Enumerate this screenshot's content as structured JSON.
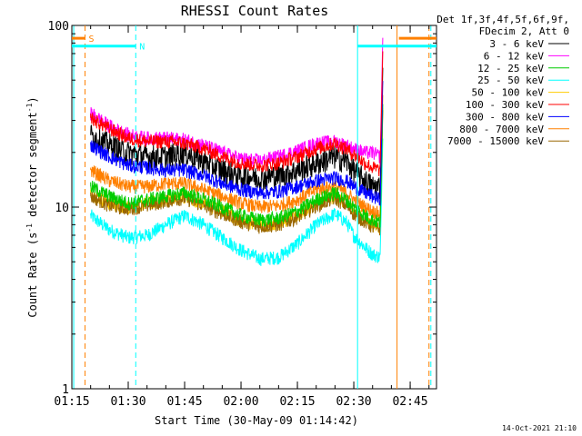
{
  "chart_data": {
    "type": "line",
    "title": "RHESSI Count Rates",
    "xlabel": "Start Time (30-May-09 01:14:42)",
    "ylabel": "Count Rate (s",
    "ylabel_sup": "-1",
    "ylabel_tail": " detector segment",
    "ylabel_sup2": "-1",
    "ylabel_close": ")",
    "yscale": "log",
    "ylim": [
      1,
      100
    ],
    "xlim_minutes": [
      75,
      172
    ],
    "x_ticks": [
      {
        "label": "01:15",
        "minutes": 75
      },
      {
        "label": "01:30",
        "minutes": 90
      },
      {
        "label": "01:45",
        "minutes": 105
      },
      {
        "label": "02:00",
        "minutes": 120
      },
      {
        "label": "02:15",
        "minutes": 135
      },
      {
        "label": "02:30",
        "minutes": 150
      },
      {
        "label": "02:45",
        "minutes": 165
      }
    ],
    "y_ticks": [
      {
        "label": "1",
        "value": 1
      },
      {
        "label": "10",
        "value": 10
      },
      {
        "label": "100",
        "value": 100
      }
    ],
    "legend_header": [
      "Det 1f,3f,4f,5f,6f,9f,",
      "FDecim 2, Att 0"
    ],
    "legend_position": "right",
    "series": [
      {
        "name": "3 - 6 keV",
        "color": "#000000",
        "points": [
          [
            80,
            25
          ],
          [
            85,
            22
          ],
          [
            90,
            20
          ],
          [
            95,
            19
          ],
          [
            100,
            19
          ],
          [
            105,
            20
          ],
          [
            110,
            18
          ],
          [
            115,
            16
          ],
          [
            120,
            15
          ],
          [
            125,
            14.5
          ],
          [
            130,
            15
          ],
          [
            135,
            16
          ],
          [
            140,
            17.5
          ],
          [
            145,
            19
          ],
          [
            148,
            18
          ],
          [
            150,
            16
          ],
          [
            153,
            14
          ],
          [
            155,
            13
          ],
          [
            157,
            13
          ]
        ]
      },
      {
        "name": "6 - 12 keV",
        "color": "#ff00ff",
        "points": [
          [
            80,
            33
          ],
          [
            85,
            28
          ],
          [
            90,
            25
          ],
          [
            95,
            24
          ],
          [
            100,
            24
          ],
          [
            105,
            23.5
          ],
          [
            110,
            22
          ],
          [
            115,
            20
          ],
          [
            120,
            18.5
          ],
          [
            125,
            18
          ],
          [
            130,
            19
          ],
          [
            135,
            20.5
          ],
          [
            140,
            22.5
          ],
          [
            145,
            23
          ],
          [
            148,
            22
          ],
          [
            150,
            21
          ],
          [
            153,
            20
          ],
          [
            155,
            20
          ],
          [
            157,
            19
          ]
        ]
      },
      {
        "name": "12 - 25 keV",
        "color": "#00cc00",
        "points": [
          [
            80,
            13
          ],
          [
            85,
            11.5
          ],
          [
            90,
            10.5
          ],
          [
            95,
            11
          ],
          [
            100,
            11.5
          ],
          [
            105,
            12
          ],
          [
            110,
            11
          ],
          [
            115,
            10
          ],
          [
            120,
            9
          ],
          [
            125,
            8.5
          ],
          [
            130,
            8.7
          ],
          [
            135,
            9.5
          ],
          [
            140,
            11
          ],
          [
            145,
            12
          ],
          [
            148,
            11
          ],
          [
            150,
            10
          ],
          [
            153,
            9
          ],
          [
            155,
            8.5
          ],
          [
            157,
            8.2
          ]
        ]
      },
      {
        "name": "25 - 50 keV",
        "color": "#00ffff",
        "points": [
          [
            80,
            9
          ],
          [
            85,
            7.5
          ],
          [
            90,
            6.8
          ],
          [
            95,
            7
          ],
          [
            100,
            8
          ],
          [
            105,
            9
          ],
          [
            110,
            8
          ],
          [
            115,
            6.8
          ],
          [
            120,
            5.8
          ],
          [
            125,
            5.2
          ],
          [
            130,
            5.3
          ],
          [
            135,
            6.3
          ],
          [
            140,
            8
          ],
          [
            145,
            9.2
          ],
          [
            148,
            8.3
          ],
          [
            150,
            7
          ],
          [
            153,
            6
          ],
          [
            155,
            5.5
          ],
          [
            157,
            5.3
          ]
        ]
      },
      {
        "name": "50 - 100 keV",
        "color": "#ffcc00",
        "points": [
          [
            80,
            12
          ],
          [
            85,
            10.5
          ],
          [
            90,
            10
          ],
          [
            95,
            10.5
          ],
          [
            100,
            11
          ],
          [
            105,
            11.5
          ],
          [
            110,
            10.5
          ],
          [
            115,
            9.5
          ],
          [
            120,
            8.5
          ],
          [
            125,
            8
          ],
          [
            130,
            8.2
          ],
          [
            135,
            9
          ],
          [
            140,
            10.5
          ],
          [
            145,
            11.5
          ],
          [
            148,
            10.5
          ],
          [
            150,
            9.5
          ],
          [
            153,
            8.5
          ],
          [
            155,
            8
          ],
          [
            157,
            7.8
          ]
        ]
      },
      {
        "name": "100 - 300 keV",
        "color": "#ff0000",
        "points": [
          [
            80,
            31
          ],
          [
            85,
            27
          ],
          [
            90,
            24
          ],
          [
            95,
            23
          ],
          [
            100,
            23
          ],
          [
            105,
            22.5
          ],
          [
            110,
            21
          ],
          [
            115,
            19
          ],
          [
            120,
            17.5
          ],
          [
            125,
            17
          ],
          [
            130,
            17.5
          ],
          [
            135,
            19
          ],
          [
            140,
            21
          ],
          [
            145,
            22.5
          ],
          [
            148,
            21
          ],
          [
            150,
            19.5
          ],
          [
            153,
            17.5
          ],
          [
            155,
            16.5
          ],
          [
            157,
            16
          ]
        ]
      },
      {
        "name": "300 - 800 keV",
        "color": "#0000ff",
        "points": [
          [
            80,
            22
          ],
          [
            85,
            19
          ],
          [
            90,
            17
          ],
          [
            95,
            16.5
          ],
          [
            100,
            16
          ],
          [
            105,
            16
          ],
          [
            110,
            15
          ],
          [
            115,
            13.5
          ],
          [
            120,
            12.5
          ],
          [
            125,
            12
          ],
          [
            130,
            12.2
          ],
          [
            135,
            13
          ],
          [
            140,
            14
          ],
          [
            145,
            14.5
          ],
          [
            148,
            14
          ],
          [
            150,
            13
          ],
          [
            153,
            12
          ],
          [
            155,
            11.5
          ],
          [
            157,
            11
          ]
        ]
      },
      {
        "name": "800 - 7000 keV",
        "color": "#ff8000",
        "points": [
          [
            80,
            16
          ],
          [
            85,
            14
          ],
          [
            90,
            13
          ],
          [
            95,
            13
          ],
          [
            100,
            13.5
          ],
          [
            105,
            13.5
          ],
          [
            110,
            12.5
          ],
          [
            115,
            11.5
          ],
          [
            120,
            10.5
          ],
          [
            125,
            10
          ],
          [
            130,
            10.2
          ],
          [
            135,
            11
          ],
          [
            140,
            12.5
          ],
          [
            145,
            13
          ],
          [
            148,
            12
          ],
          [
            150,
            11
          ],
          [
            153,
            10
          ],
          [
            155,
            9.5
          ],
          [
            157,
            9.2
          ]
        ]
      },
      {
        "name": "7000 - 15000 keV",
        "color": "#996600",
        "points": [
          [
            80,
            11.5
          ],
          [
            85,
            10.2
          ],
          [
            90,
            9.8
          ],
          [
            95,
            10.2
          ],
          [
            100,
            10.8
          ],
          [
            105,
            11.2
          ],
          [
            110,
            10.2
          ],
          [
            115,
            9.2
          ],
          [
            120,
            8.3
          ],
          [
            125,
            7.8
          ],
          [
            130,
            8
          ],
          [
            135,
            8.8
          ],
          [
            140,
            10.2
          ],
          [
            145,
            11.2
          ],
          [
            148,
            10.2
          ],
          [
            150,
            9.2
          ],
          [
            153,
            8.3
          ],
          [
            155,
            7.8
          ],
          [
            157,
            7.6
          ]
        ]
      }
    ],
    "annotations": [
      {
        "label": "S",
        "color": "#ff8000",
        "from_minutes": 75,
        "to_minutes": 78.5,
        "level": 85
      },
      {
        "label": "N",
        "color": "#00ffff",
        "from_minutes": 75,
        "to_minutes": 92,
        "level": 77
      }
    ],
    "right_bars": [
      {
        "color": "#ff8000",
        "from_minutes": 162,
        "to_minutes": 172,
        "level": 85
      },
      {
        "color": "#00ffff",
        "from_minutes": 151,
        "to_minutes": 172,
        "level": 77
      }
    ],
    "vertical_markers": [
      {
        "color": "#00ffff",
        "style": "solid",
        "minutes": 75.5
      },
      {
        "color": "#ff8000",
        "style": "dashed",
        "minutes": 78.5
      },
      {
        "color": "#00ffff",
        "style": "dashed",
        "minutes": 92
      },
      {
        "color": "#00ffff",
        "style": "solid",
        "minutes": 151
      },
      {
        "color": "#ff8000",
        "style": "solid",
        "minutes": 161.5
      },
      {
        "color": "#ff8000",
        "style": "dashed",
        "minutes": 170
      },
      {
        "color": "#00ffff",
        "style": "dashed",
        "minutes": 170.5
      }
    ],
    "timestamp": "14-Oct-2021 21:10"
  }
}
